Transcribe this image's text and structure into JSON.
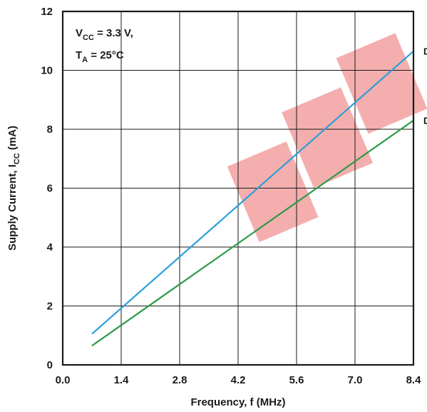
{
  "chart_data": {
    "type": "line",
    "xlabel": "Frequency, f (MHz)",
    "ylabel": {
      "main": "Supply Current, I",
      "sub": "CC",
      "unit": " (mA)"
    },
    "xlim": [
      0,
      8.4
    ],
    "ylim": [
      0,
      12
    ],
    "xticks": [
      "0.0",
      "1.4",
      "2.8",
      "4.2",
      "5.6",
      "7.0",
      "8.4"
    ],
    "yticks": [
      "0",
      "2",
      "4",
      "6",
      "8",
      "10",
      "12"
    ],
    "grid": true,
    "annotation": {
      "line1": {
        "main": "V",
        "sub": "CC",
        "rest": " = 3.3 V,"
      },
      "line2": {
        "main": "T",
        "sub": "A",
        "rest": " = 25°C"
      }
    },
    "series": [
      {
        "label": "D",
        "color": "#2a9fd8",
        "x": [
          0.7,
          8.4
        ],
        "y": [
          1.05,
          10.65
        ]
      },
      {
        "label": "D",
        "color": "#2e9a48",
        "x": [
          0.7,
          8.4
        ],
        "y": [
          0.65,
          8.3
        ]
      }
    ],
    "watermark_color": "#e53838"
  }
}
